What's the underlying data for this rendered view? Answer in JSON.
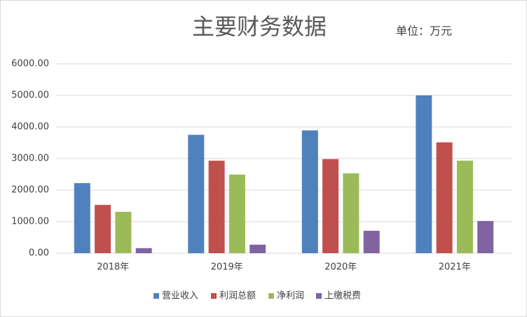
{
  "chart_data": {
    "type": "bar",
    "title": "主要财务数据",
    "annotation": "单位：万元",
    "categories": [
      "2018年",
      "2019年",
      "2020年",
      "2021年"
    ],
    "series": [
      {
        "name": "营业收入",
        "color": "#4f81bd",
        "values": [
          2220,
          3750,
          3890,
          5000
        ]
      },
      {
        "name": "利润总额",
        "color": "#c0504d",
        "values": [
          1530,
          2930,
          2980,
          3510
        ]
      },
      {
        "name": "净利润",
        "color": "#9bbb59",
        "values": [
          1310,
          2490,
          2530,
          2930
        ]
      },
      {
        "name": "上缴税费",
        "color": "#8064a2",
        "values": [
          160,
          270,
          710,
          1020
        ]
      }
    ],
    "ylim": [
      0,
      6000
    ],
    "yticks": [
      {
        "value": 0,
        "label": "0.00"
      },
      {
        "value": 1000,
        "label": "1000.00"
      },
      {
        "value": 2000,
        "label": "2000.00"
      },
      {
        "value": 3000,
        "label": "3000.00"
      },
      {
        "value": 4000,
        "label": "4000.00"
      },
      {
        "value": 5000,
        "label": "5000.00"
      },
      {
        "value": 6000,
        "label": "6000.00"
      }
    ],
    "grid": true,
    "legend": "bottom"
  }
}
